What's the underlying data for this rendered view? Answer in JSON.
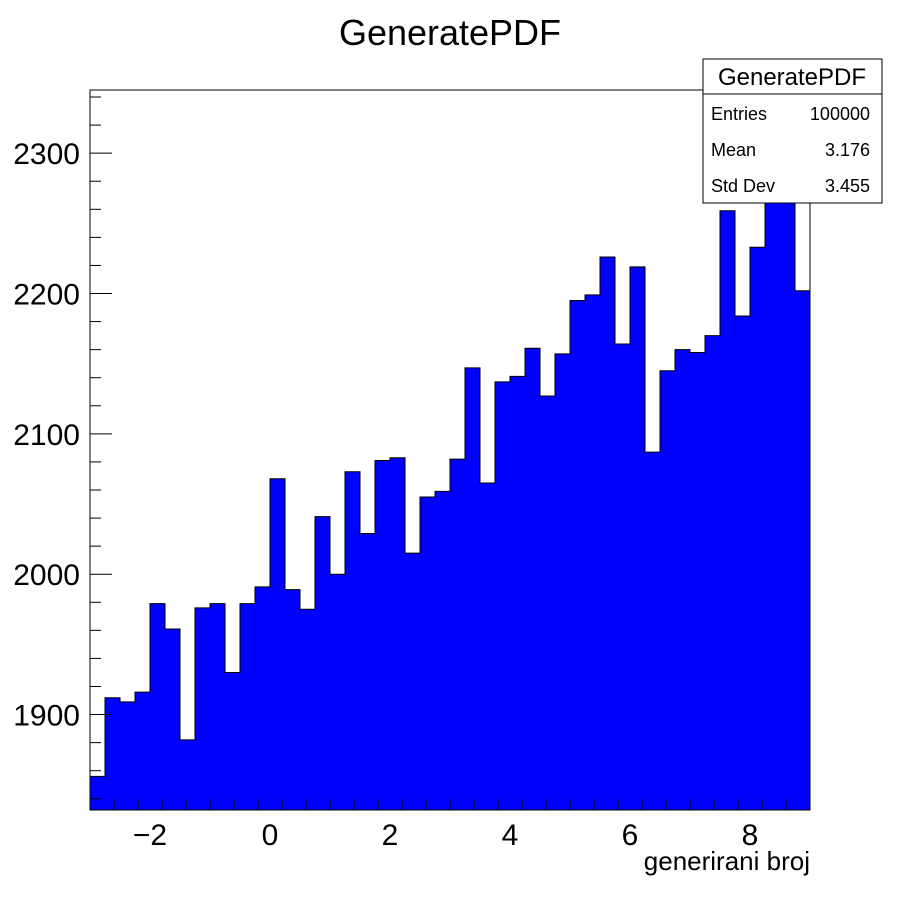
{
  "chart_data": {
    "type": "bar",
    "title": "GeneratePDF",
    "xlabel": "generirani broj",
    "ylabel": "",
    "xlim": [
      -3,
      9
    ],
    "ylim": [
      1832,
      2345
    ],
    "x_ticks": [
      -2,
      0,
      2,
      4,
      6,
      8
    ],
    "x_tick_labels": [
      "−2",
      "0",
      "2",
      "4",
      "6",
      "8"
    ],
    "y_ticks": [
      1900,
      2000,
      2100,
      2200,
      2300
    ],
    "y_tick_labels": [
      "1900",
      "2000",
      "2100",
      "2200",
      "2300"
    ],
    "bin_edges_start": -3,
    "bin_width": 0.25,
    "values": [
      1856,
      1912,
      1909,
      1916,
      1979,
      1961,
      1882,
      1976,
      1979,
      1930,
      1979,
      1991,
      2068,
      1989,
      1975,
      2041,
      2000,
      2073,
      2029,
      2081,
      2083,
      2015,
      2055,
      2059,
      2082,
      2147,
      2065,
      2137,
      2141,
      2161,
      2127,
      2157,
      2195,
      2199,
      2226,
      2164,
      2219,
      2087,
      2145,
      2160,
      2158,
      2170,
      2259,
      2184,
      2233,
      2270,
      2330,
      2202
    ],
    "bar_color": "#0000ff",
    "grid": false,
    "legend": "none"
  },
  "stats_box": {
    "title": "GeneratePDF",
    "rows": [
      {
        "label": "Entries",
        "value": "100000"
      },
      {
        "label": "Mean",
        "value": "3.176"
      },
      {
        "label": "Std Dev",
        "value": "3.455"
      }
    ]
  }
}
